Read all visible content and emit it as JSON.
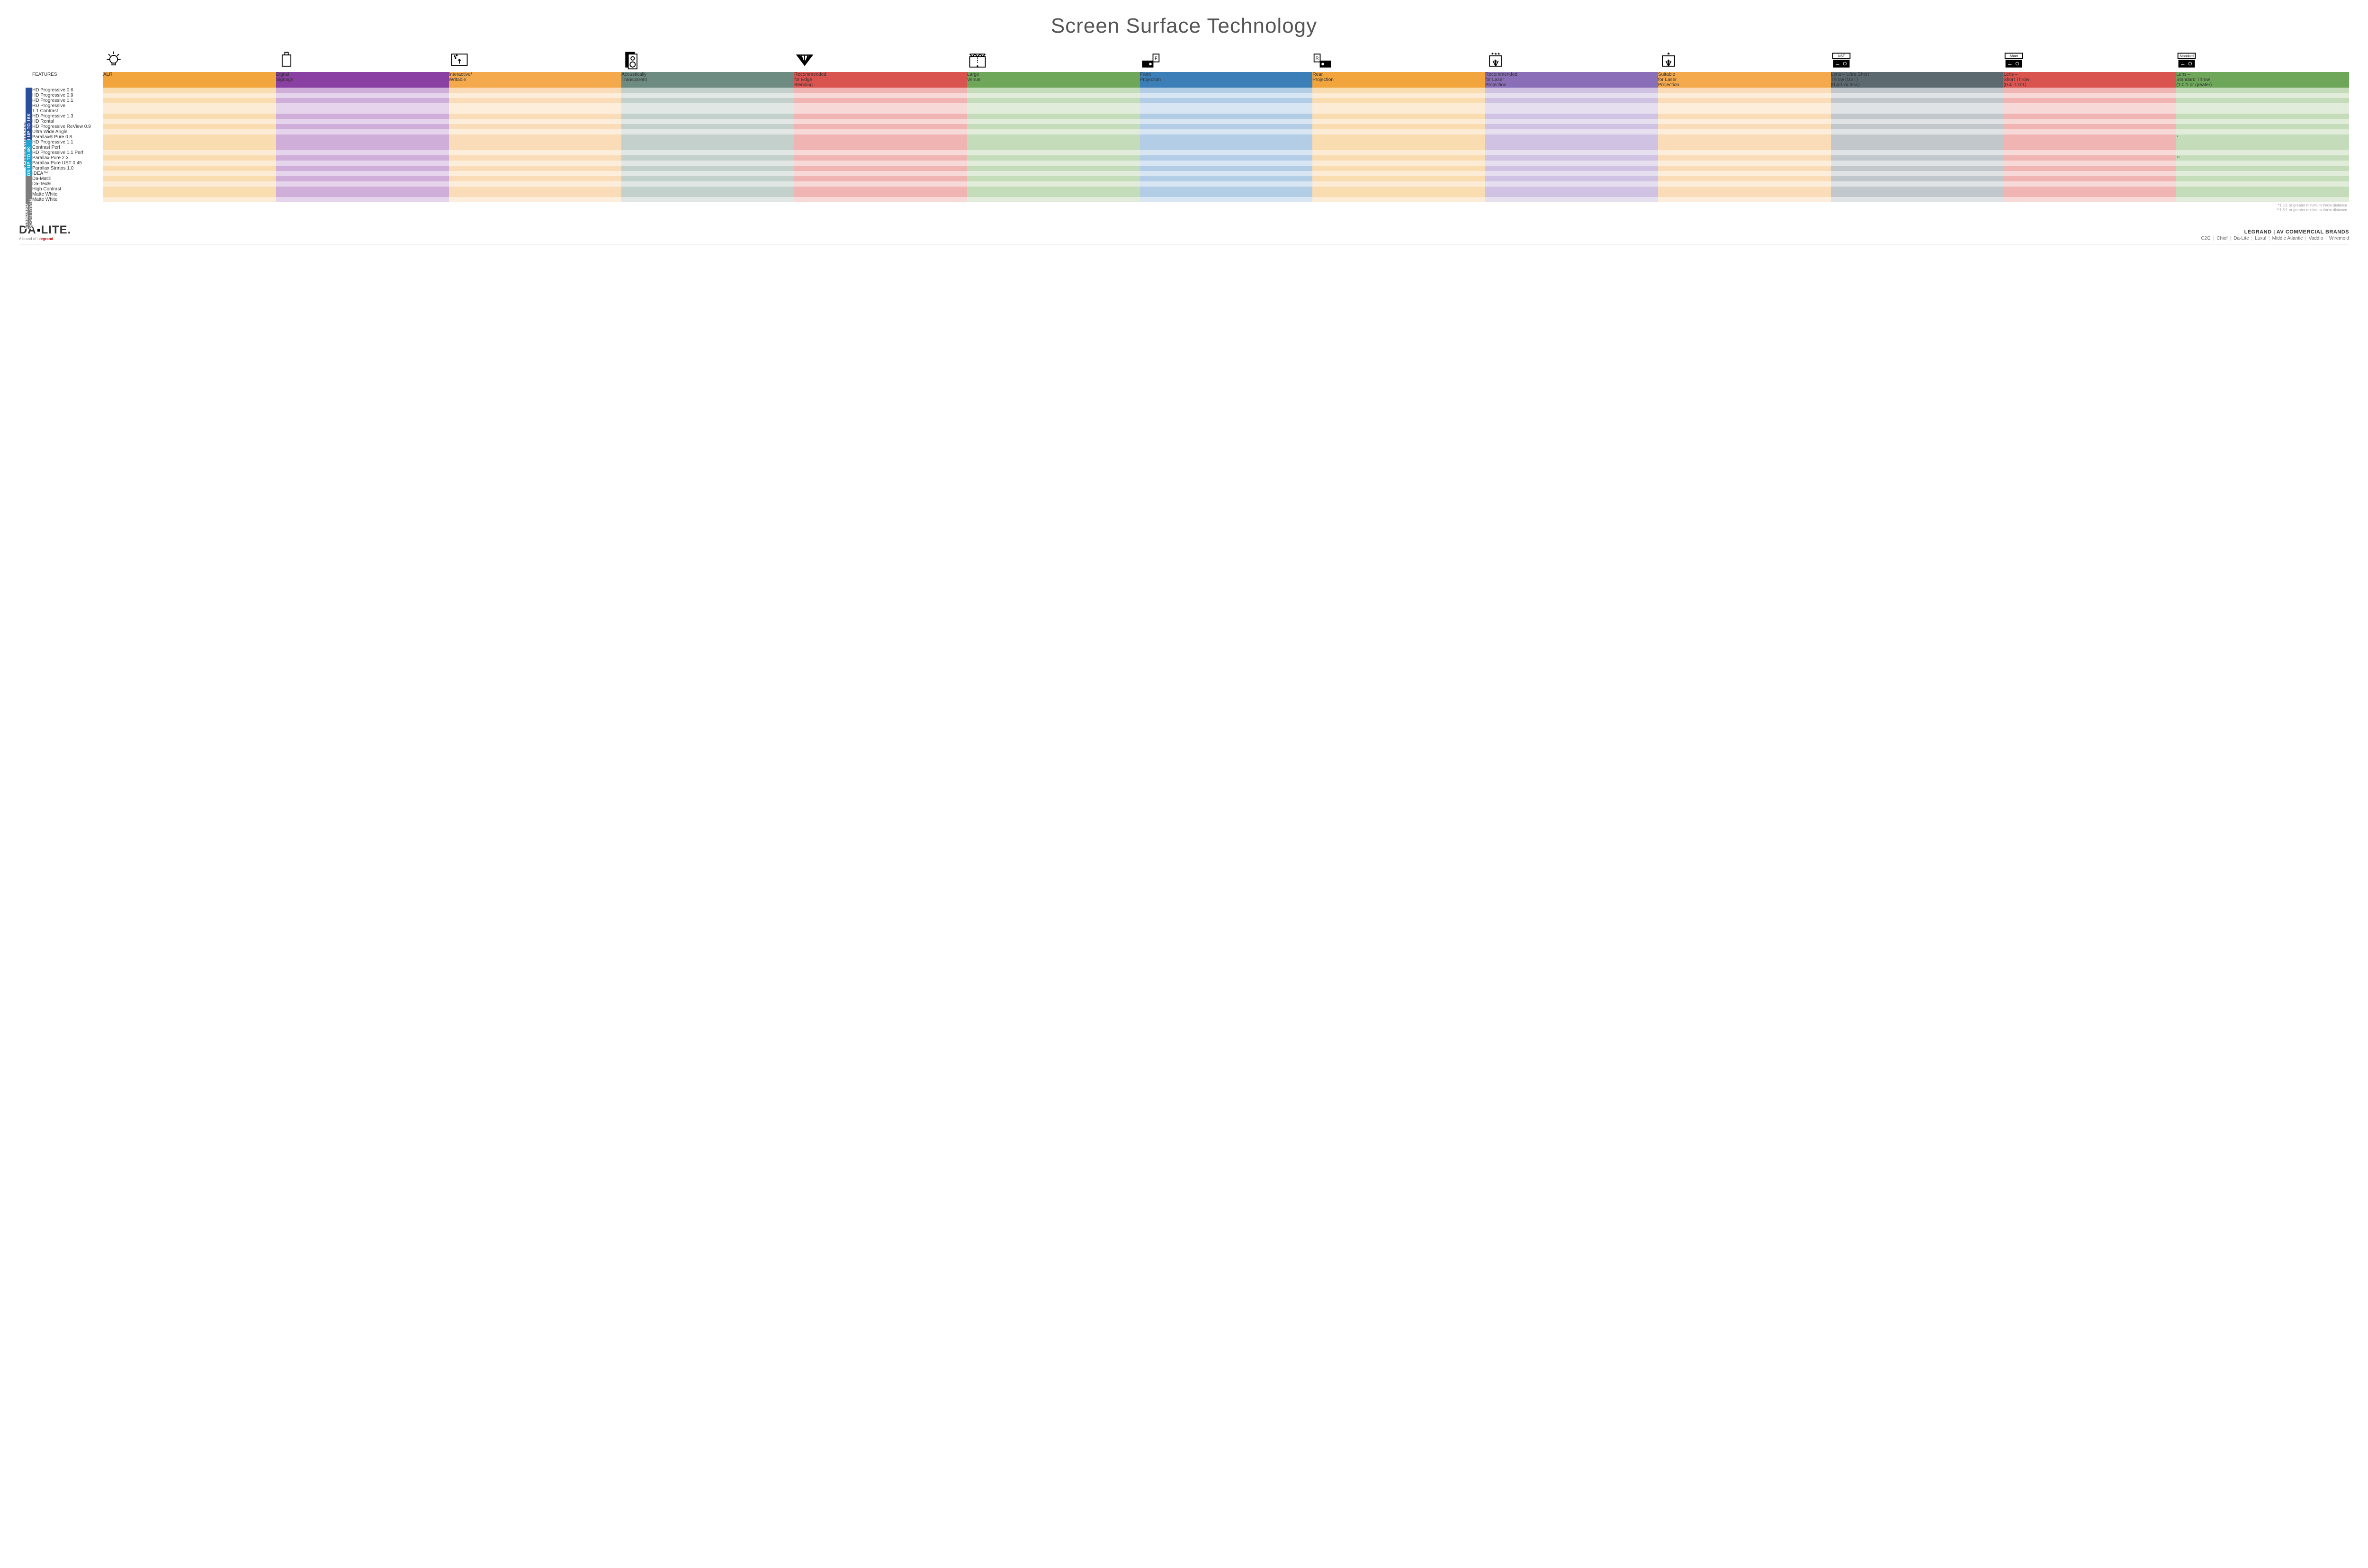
{
  "title": "Screen Surface Technology",
  "columns": [
    {
      "key": "alr",
      "label": "ALR",
      "color": "#f2a53c",
      "light": "#f9dcb0",
      "lighter": "#fcecd5"
    },
    {
      "key": "signage",
      "label": "Digital\nSignage",
      "color": "#8a3fa3",
      "light": "#cfaed9",
      "lighter": "#e6d4ec"
    },
    {
      "key": "writable",
      "label": "Interactive/\nWritable",
      "color": "#f4a94d",
      "light": "#fadcb8",
      "lighter": "#fdeedb"
    },
    {
      "key": "acoustic",
      "label": "Acoustically\nTransparent",
      "color": "#6e8b82",
      "light": "#c3d0cb",
      "lighter": "#e0e7e4"
    },
    {
      "key": "edge",
      "label": "Recommended\nfor Edge\nBlending",
      "color": "#d9534f",
      "light": "#f0b4b2",
      "lighter": "#f7d9d8"
    },
    {
      "key": "large",
      "label": "Large\nVenue",
      "color": "#6fa75a",
      "light": "#c4dcb9",
      "lighter": "#e1edda"
    },
    {
      "key": "front",
      "label": "Front\nProjection",
      "color": "#3c7fb8",
      "light": "#b3cde6",
      "lighter": "#d8e5f2"
    },
    {
      "key": "rear",
      "label": "Rear\nProjection",
      "color": "#f2a53c",
      "light": "#f9dcb0",
      "lighter": "#fcecd5"
    },
    {
      "key": "rec_laser",
      "label": "Recommended\nfor Laser\nProjection",
      "color": "#8a6fb8",
      "light": "#cfc2e2",
      "lighter": "#e6dff0"
    },
    {
      "key": "suit_laser",
      "label": "Suitable\nfor Laser\nProjection",
      "color": "#f4a94d",
      "light": "#fadcb8",
      "lighter": "#fdeedb"
    },
    {
      "key": "ust",
      "label": "Lens – Ultra Short\nThrow (UST)\n(0.4:1 or less)",
      "color": "#5c6a70",
      "light": "#c1c7ca",
      "lighter": "#dfe3e5"
    },
    {
      "key": "short",
      "label": "Lens –\nShort Throw\n(0.4–1.0:1)",
      "color": "#d9534f",
      "light": "#f0b4b2",
      "lighter": "#f7d9d8"
    },
    {
      "key": "std",
      "label": "Lens –\nStandard Throw\n(1.0:1 or greater)",
      "color": "#6fa75a",
      "light": "#c4dcb9",
      "lighter": "#e1edda"
    }
  ],
  "groups": [
    {
      "title": "HIGH RESOLUTION UP TO 16K",
      "color": "#2a4f9e",
      "rows": [
        {
          "label": "HD Progressive 0.6",
          "dots": [
            "edge",
            "large",
            "front",
            "rec_laser",
            "ust",
            "short",
            "std"
          ]
        },
        {
          "label": "HD Progressive 0.9",
          "dots": [
            "edge",
            "large",
            "front",
            "rec_laser",
            "ust",
            "short",
            "std"
          ]
        },
        {
          "label": "HD Progressive 1.1",
          "dots": [
            "edge",
            "large",
            "front",
            "rec_laser",
            "ust",
            "short",
            "std"
          ]
        },
        {
          "label": "HD Progressive\n1.1 Contrast",
          "dots": [
            "large",
            "front",
            "rec_laser",
            "ust",
            "short",
            "std"
          ]
        },
        {
          "label": "HD Progressive 1.3",
          "dots": [
            "large",
            "front",
            "rec_laser",
            "suit_laser",
            "ust",
            "short",
            "std"
          ]
        },
        {
          "label": "HD Rental",
          "dots": [
            "large",
            "front",
            "rec_laser",
            "ust",
            "short",
            "std"
          ]
        },
        {
          "label": "HD Progressive ReView 0.9",
          "dots": [
            "edge",
            "large",
            "front",
            "rear",
            "rec_laser",
            "ust",
            "short",
            "std"
          ]
        },
        {
          "label": "Ultra Wide Angle",
          "dots": [
            "edge",
            "large",
            "rear",
            "ust",
            "short"
          ]
        },
        {
          "label": "Parallax® Pure 0.8",
          "dots": [
            "alr",
            "signage",
            "edge",
            "front",
            "rec_laser"
          ],
          "std_note": "*"
        }
      ]
    },
    {
      "title": "HIGH RESOLUTION UP TO 4K",
      "color": "#1fa6d6",
      "rows": [
        {
          "label": "HD Progressive 1.1\nContrast Perf",
          "dots": [
            "acoustic",
            "front",
            "rec_laser",
            "ust",
            "short",
            "std"
          ]
        },
        {
          "label": "HD Progressive 1.1 Perf",
          "dots": [
            "acoustic",
            "edge",
            "front",
            "rec_laser",
            "ust",
            "short",
            "std"
          ]
        },
        {
          "label": "Parallax Pure 2.3",
          "dots": [
            "alr",
            "signage",
            "front",
            "suit_laser"
          ],
          "std_note": "**"
        },
        {
          "label": "Parallax Pure UST 0.45",
          "dots": [
            "alr",
            "signage",
            "edge",
            "front",
            "rec_laser",
            "ust"
          ]
        },
        {
          "label": "Parallax Stratos 1.0",
          "dots": [
            "alr",
            "signage",
            "large",
            "front",
            "suit_laser",
            "std"
          ]
        },
        {
          "label": "IDEA™",
          "dots": [
            "writable",
            "front",
            "rec_laser",
            "ust"
          ]
        }
      ]
    },
    {
      "title": "STANDARD\nRESOLUTION",
      "color": "#7d7d7d",
      "rows": [
        {
          "label": "Da-Mat®",
          "dots": [
            "large",
            "front",
            "ust",
            "short",
            "std"
          ]
        },
        {
          "label": "Da-Tex®",
          "dots": [
            "large",
            "rear",
            "std"
          ]
        },
        {
          "label": "High Contrast\nMatte White",
          "dots": [
            "front",
            "std"
          ]
        },
        {
          "label": "Matte White",
          "dots": [
            "large",
            "front",
            "std"
          ]
        }
      ]
    }
  ],
  "outer_label": "SCREEN SURFACES",
  "features_label": "FEATURES",
  "footnotes": [
    "*1.5:1 or greater minimum throw distance",
    "**1.8:1 or greater minimum throw distance"
  ],
  "footer": {
    "logo_a": "DA",
    "logo_b": "LITE.",
    "tag_pre": "A brand of ",
    "tag_brand": "legrand",
    "brand_hd": "LEGRAND | AV COMMERCIAL BRANDS",
    "brands": [
      "C2G",
      "Chief",
      "Da-Lite",
      "Luxul",
      "Middle Atlantic",
      "Vaddio",
      "Wiremold"
    ]
  },
  "icons": {
    "alr": "bulb",
    "signage": "sign",
    "writable": "touch",
    "acoustic": "speaker",
    "edge": "rays",
    "large": "truss",
    "front": "proj-f",
    "rear": "proj-r",
    "rec_laser": "laser3",
    "suit_laser": "laser1",
    "ust": "proj-ust",
    "short": "proj-short",
    "std": "proj-std"
  }
}
